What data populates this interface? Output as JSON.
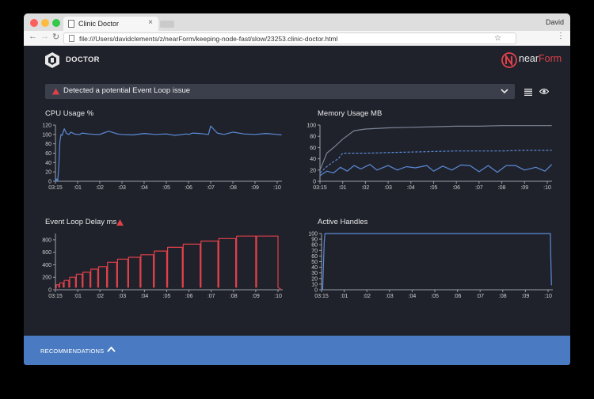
{
  "browser": {
    "tab_title": "Clinic Doctor",
    "tab_close": "×",
    "profile_name": "David",
    "nav_back": "←",
    "nav_forward": "→",
    "nav_reload": "↻",
    "url": "file:///Users/davidclements/z/nearForm/keeping-node-fast/slow/23253.clinic-doctor.html",
    "bookmark_star": "☆",
    "menu": "⋮"
  },
  "app": {
    "brand": "DOCTOR",
    "vendor": "nearForm",
    "vendor_parts": [
      "near",
      "Form"
    ],
    "alert": {
      "text": "Detected a potential Event Loop issue",
      "icon": "warning-triangle-icon"
    },
    "recommendations_label": "RECOMMENDATIONS"
  },
  "colors": {
    "background": "#1f222b",
    "series_blue": "#5b8ad6",
    "series_red": "#e0404a",
    "recommendations_bar": "#4a7bc2",
    "memory_rss": "#7c8494"
  },
  "chart_data": [
    {
      "title": "CPU Usage %",
      "type": "line",
      "x_ticks": [
        "03:15",
        ":01",
        ":02",
        ":03",
        ":04",
        ":05",
        ":06",
        ":07",
        ":08",
        ":09",
        ":10"
      ],
      "ylim": [
        0,
        120
      ],
      "y_ticks": [
        0,
        20,
        40,
        60,
        80,
        100,
        120
      ],
      "series": [
        {
          "color": "#5b8ad6",
          "x": [
            0,
            0.05,
            0.1,
            0.15,
            0.2,
            0.25,
            0.3,
            0.4,
            0.5,
            0.6,
            0.7,
            0.85,
            1.0,
            1.1,
            1.2,
            1.5,
            1.8,
            2.0,
            2.4,
            2.8,
            3.0,
            3.5,
            4.0,
            4.5,
            5.0,
            5.4,
            5.9,
            6.0,
            6.2,
            6.5,
            6.9,
            7.0,
            7.3,
            7.6,
            8.0,
            8.5,
            9.0,
            9.5,
            10.0,
            10.2
          ],
          "values": [
            0,
            5,
            0,
            30,
            85,
            100,
            98,
            112,
            102,
            100,
            105,
            101,
            100,
            100,
            103,
            101,
            100,
            100,
            107,
            101,
            100,
            99,
            102,
            100,
            101,
            98,
            101,
            100,
            103,
            102,
            100,
            118,
            103,
            100,
            105,
            101,
            100,
            102,
            100,
            99
          ]
        }
      ]
    },
    {
      "title": "Memory Usage MB",
      "type": "line",
      "x_ticks": [
        "03:15",
        ":01",
        ":02",
        ":03",
        ":04",
        ":05",
        ":06",
        ":07",
        ":08",
        ":09",
        ":10"
      ],
      "ylim": [
        0,
        100
      ],
      "y_ticks": [
        0,
        20,
        40,
        60,
        80,
        100
      ],
      "series": [
        {
          "color": "#7c8494",
          "x": [
            0,
            0.3,
            0.6,
            1.0,
            1.5,
            2.0,
            3.0,
            4.0,
            5.0,
            6.0,
            7.0,
            8.0,
            9.0,
            10.0,
            10.2
          ],
          "values": [
            20,
            50,
            60,
            75,
            90,
            93,
            95,
            96,
            97,
            98,
            98,
            99,
            99,
            99,
            99
          ]
        },
        {
          "color": "#5b8ad6",
          "dashed": true,
          "x": [
            0,
            0.3,
            0.6,
            0.8,
            1.0,
            2.0,
            3.0,
            4.0,
            5.0,
            6.0,
            7.0,
            8.0,
            9.0,
            10.0,
            10.2
          ],
          "values": [
            15,
            26,
            35,
            40,
            50,
            50,
            51,
            52,
            53,
            54,
            54,
            54,
            55,
            55,
            55
          ]
        },
        {
          "color": "#5b8ad6",
          "x": [
            0,
            0.3,
            0.6,
            0.9,
            1.2,
            1.5,
            1.8,
            2.2,
            2.5,
            3.0,
            3.4,
            3.8,
            4.2,
            4.7,
            5.0,
            5.4,
            5.8,
            6.2,
            6.6,
            7.0,
            7.4,
            7.8,
            8.2,
            8.6,
            9.0,
            9.5,
            9.9,
            10.2
          ],
          "values": [
            10,
            18,
            15,
            25,
            18,
            28,
            22,
            30,
            20,
            28,
            20,
            26,
            24,
            28,
            18,
            27,
            20,
            29,
            28,
            17,
            28,
            16,
            28,
            28,
            20,
            25,
            18,
            30
          ]
        }
      ]
    },
    {
      "title": "Event Loop Delay ms",
      "title_icon": "warning-triangle-icon",
      "type": "line",
      "x_ticks": [
        "03:15",
        ":01",
        ":02",
        ":03",
        ":04",
        ":05",
        ":06",
        ":07",
        ":08",
        ":09",
        ":10"
      ],
      "ylim": [
        0,
        900
      ],
      "y_ticks": [
        0,
        200,
        400,
        600,
        800
      ],
      "series": [
        {
          "color": "#e0404a",
          "step_peaks_x": [
            0.15,
            0.35,
            0.6,
            0.9,
            1.2,
            1.55,
            1.9,
            2.3,
            2.75,
            3.25,
            3.8,
            4.4,
            5.0,
            5.7,
            6.5,
            7.3,
            8.1,
            9.0,
            10.0
          ],
          "step_peaks": [
            80,
            110,
            150,
            200,
            250,
            280,
            330,
            370,
            440,
            490,
            520,
            560,
            620,
            680,
            730,
            780,
            820,
            860,
            860
          ],
          "floor": 40
        }
      ]
    },
    {
      "title": "Active Handles",
      "type": "line",
      "x_ticks": [
        "03:15",
        ":01",
        ":02",
        ":03",
        ":04",
        ":05",
        ":06",
        ":07",
        ":08",
        ":09",
        ":10"
      ],
      "ylim": [
        0,
        100
      ],
      "y_ticks": [
        0,
        10,
        20,
        30,
        40,
        50,
        60,
        70,
        80,
        90,
        100
      ],
      "series": [
        {
          "color": "#5b8ad6",
          "x": [
            0,
            0.05,
            0.08,
            0.12,
            0.15,
            10.1,
            10.12,
            10.15
          ],
          "values": [
            0,
            0,
            40,
            85,
            100,
            100,
            60,
            8
          ]
        }
      ]
    }
  ]
}
